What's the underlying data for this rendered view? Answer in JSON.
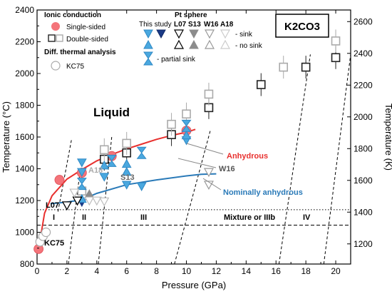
{
  "chart_data": {
    "type": "scatter",
    "title": "K2CO3",
    "xlabel": "Pressure (GPa)",
    "ylabel": "Temperature (°C)",
    "ylabel_right": "Temperature (K)",
    "xlim": [
      0,
      21
    ],
    "ylim": [
      800,
      2400
    ],
    "xticks": [
      "0",
      "2",
      "4",
      "6",
      "8",
      "10",
      "12",
      "14",
      "16",
      "18",
      "20"
    ],
    "yticks": [
      "800",
      "1000",
      "1200",
      "1400",
      "1600",
      "1800",
      "2000",
      "2200",
      "2400"
    ],
    "yticks_right": [
      "1200",
      "1400",
      "1600",
      "1800",
      "2000",
      "2200",
      "2400",
      "2600"
    ],
    "region_label": "Liquid",
    "phase_labels": [
      "I",
      "II",
      "III",
      "Mixture or IIIb",
      "IV"
    ],
    "annotations": [
      "Anhydrous",
      "Nominally anhydrous",
      "W16",
      "S13",
      "L07",
      "A18",
      "KC75"
    ],
    "legend": {
      "ionic_title": "Ionic conduction",
      "single_sided": "Single-sided",
      "double_sided": "Double-sided",
      "dta_title": "Diff. thermal analysis",
      "kc75": "KC75",
      "pt_title": "Pt sphere",
      "col_this_study": "This study",
      "col_l07": "L07",
      "col_s13": "S13",
      "col_w16": "W16",
      "col_a18": "A18",
      "sink": "- sink",
      "no_sink": "- no sink",
      "partial_sink": "- partial sink"
    },
    "series": [
      {
        "name": "Single-sided",
        "style": "single",
        "points": [
          [
            0.1,
            895
          ],
          [
            1.5,
            1330
          ],
          [
            3.0,
            1375
          ],
          [
            5.0,
            1480
          ],
          [
            10.0,
            1640
          ]
        ]
      },
      {
        "name": "Double-sided",
        "style": "double_black",
        "points": [
          [
            4.5,
            1460
          ],
          [
            6.0,
            1500
          ],
          [
            9.0,
            1615
          ],
          [
            11.5,
            1785
          ],
          [
            15.0,
            1930
          ],
          [
            18.0,
            2040
          ],
          [
            20.0,
            2100
          ]
        ]
      },
      {
        "name": "Double-sided",
        "style": "double_gray",
        "points": [
          [
            3.0,
            1260
          ],
          [
            4.5,
            1520
          ],
          [
            6.0,
            1560
          ],
          [
            9.0,
            1680
          ],
          [
            10.0,
            1745
          ],
          [
            11.5,
            1870
          ],
          [
            16.5,
            2040
          ],
          [
            20.0,
            2205
          ]
        ]
      },
      {
        "name": "KC75",
        "style": "circle_open",
        "points": [
          [
            0.2,
            940
          ],
          [
            0.4,
            975
          ],
          [
            0.6,
            1000
          ]
        ]
      },
      {
        "name": "This study",
        "style": "sink_blue",
        "points": [
          [
            3.0,
            1440
          ],
          [
            3.0,
            1380
          ],
          [
            4.5,
            1350
          ],
          [
            6.0,
            1300
          ],
          [
            7.0,
            1290
          ],
          [
            10.0,
            1580
          ]
        ]
      },
      {
        "name": "This study",
        "style": "sink_navy",
        "points": [
          [
            3.0,
            1185
          ]
        ]
      },
      {
        "name": "This study",
        "style": "nosink_blue",
        "points": [
          [
            3.0,
            1210
          ],
          [
            4.5,
            1420
          ],
          [
            6.0,
            1430
          ],
          [
            6.0,
            1380
          ],
          [
            10.0,
            1610
          ]
        ]
      },
      {
        "name": "This study",
        "style": "partial_blue",
        "points": [
          [
            3.0,
            1305
          ],
          [
            5.0,
            1450
          ],
          [
            7.0,
            1500
          ],
          [
            10.0,
            1670
          ]
        ]
      },
      {
        "name": "L07",
        "style": "sink_black_open",
        "points": [
          [
            2.0,
            1170
          ],
          [
            2.7,
            1200
          ]
        ]
      },
      {
        "name": "S13",
        "style": "nosink_gray",
        "points": [
          [
            3.5,
            1240
          ]
        ]
      },
      {
        "name": "W16",
        "style": "sink_gray_open",
        "points": [
          [
            11.5,
            1380
          ],
          [
            11.5,
            1300
          ]
        ]
      },
      {
        "name": "A18",
        "style": "sink_lightgray_open",
        "points": [
          [
            2.5,
            1250
          ],
          [
            3.5,
            1200
          ],
          [
            4.0,
            1200
          ],
          [
            4.5,
            1195
          ]
        ]
      }
    ],
    "curves": [
      {
        "name": "Anhydrous",
        "points": [
          [
            0.1,
            895
          ],
          [
            0.5,
            1120
          ],
          [
            1.0,
            1230
          ],
          [
            2.0,
            1335
          ],
          [
            3.0,
            1395
          ],
          [
            4.0,
            1450
          ],
          [
            5.0,
            1490
          ],
          [
            6.0,
            1525
          ],
          [
            7.0,
            1555
          ],
          [
            8.0,
            1585
          ],
          [
            9.0,
            1610
          ],
          [
            10.0,
            1630
          ],
          [
            10.6,
            1648
          ]
        ]
      },
      {
        "name": "Nominally anhydrous",
        "points": [
          [
            0.9,
            1180
          ],
          [
            1.5,
            1185
          ],
          [
            2.0,
            1190
          ],
          [
            3.0,
            1205
          ],
          [
            4.0,
            1245
          ],
          [
            6.0,
            1300
          ],
          [
            8.0,
            1330
          ],
          [
            10.0,
            1355
          ],
          [
            11.0,
            1365
          ],
          [
            12.0,
            1368
          ]
        ]
      }
    ],
    "phase_boundaries": [
      {
        "x1": 1.4,
        "y1": 1130,
        "x2": 2.3,
        "y2": 1580
      },
      {
        "x1": 2.1,
        "y1": 800,
        "x2": 2.9,
        "y2": 1400
      },
      {
        "x1": 4.1,
        "y1": 800,
        "x2": 5.0,
        "y2": 1600
      },
      {
        "x1": 9.2,
        "y1": 800,
        "x2": 11.6,
        "y2": 1640
      },
      {
        "x1": 16.2,
        "y1": 800,
        "x2": 18.3,
        "y2": 2120
      },
      {
        "x1": 19.2,
        "y1": 800,
        "x2": 21.0,
        "y2": 2120
      }
    ],
    "horizontal_lines": [
      {
        "y": 1142,
        "style": "dotted"
      },
      {
        "y": 1045,
        "style": "dashed"
      }
    ],
    "colors": {
      "anhydrous": "#e8302e",
      "nominally_anhydrous": "#2a7ab8",
      "single_sided": "#f4747a",
      "this_study": "#4aa8df",
      "this_study_dark": "#1a3a86",
      "gray": "#8c8c8c",
      "light_gray": "#bdbdbd"
    }
  }
}
